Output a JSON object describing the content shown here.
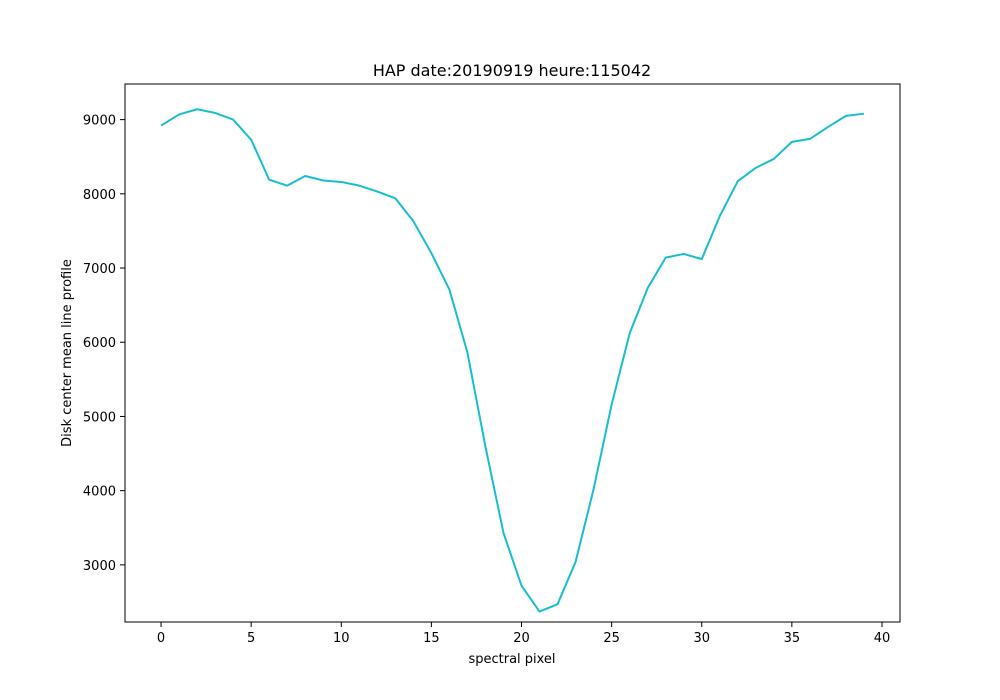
{
  "chart_data": {
    "type": "line",
    "title": "HAP date:20190919 heure:115042",
    "xlabel": "spectral pixel",
    "ylabel": "Disk center mean line profile",
    "xlim": [
      -2,
      41
    ],
    "ylim": [
      2230,
      9480
    ],
    "xticks": [
      0,
      5,
      10,
      15,
      20,
      25,
      30,
      35,
      40
    ],
    "yticks": [
      3000,
      4000,
      5000,
      6000,
      7000,
      8000,
      9000
    ],
    "grid": false,
    "line_color": "#17becf",
    "series": [
      {
        "x": [
          0,
          1,
          2,
          3,
          4,
          5,
          6,
          7,
          8,
          9,
          10,
          11,
          12,
          13,
          14,
          15,
          16,
          17,
          18,
          19,
          20,
          21,
          22,
          23,
          24,
          25,
          26,
          27,
          28,
          29,
          30,
          31,
          32,
          33,
          34,
          35,
          36,
          37,
          38,
          39
        ],
        "values": [
          8920,
          9070,
          9140,
          9090,
          9000,
          8730,
          8190,
          8110,
          8240,
          8180,
          8160,
          8110,
          8030,
          7940,
          7630,
          7200,
          6710,
          5860,
          4590,
          3430,
          2720,
          2370,
          2470,
          3040,
          4020,
          5160,
          6120,
          6730,
          7140,
          7190,
          7120,
          7700,
          8170,
          8350,
          8470,
          8700,
          8740,
          8900,
          9050,
          9080
        ]
      }
    ]
  }
}
